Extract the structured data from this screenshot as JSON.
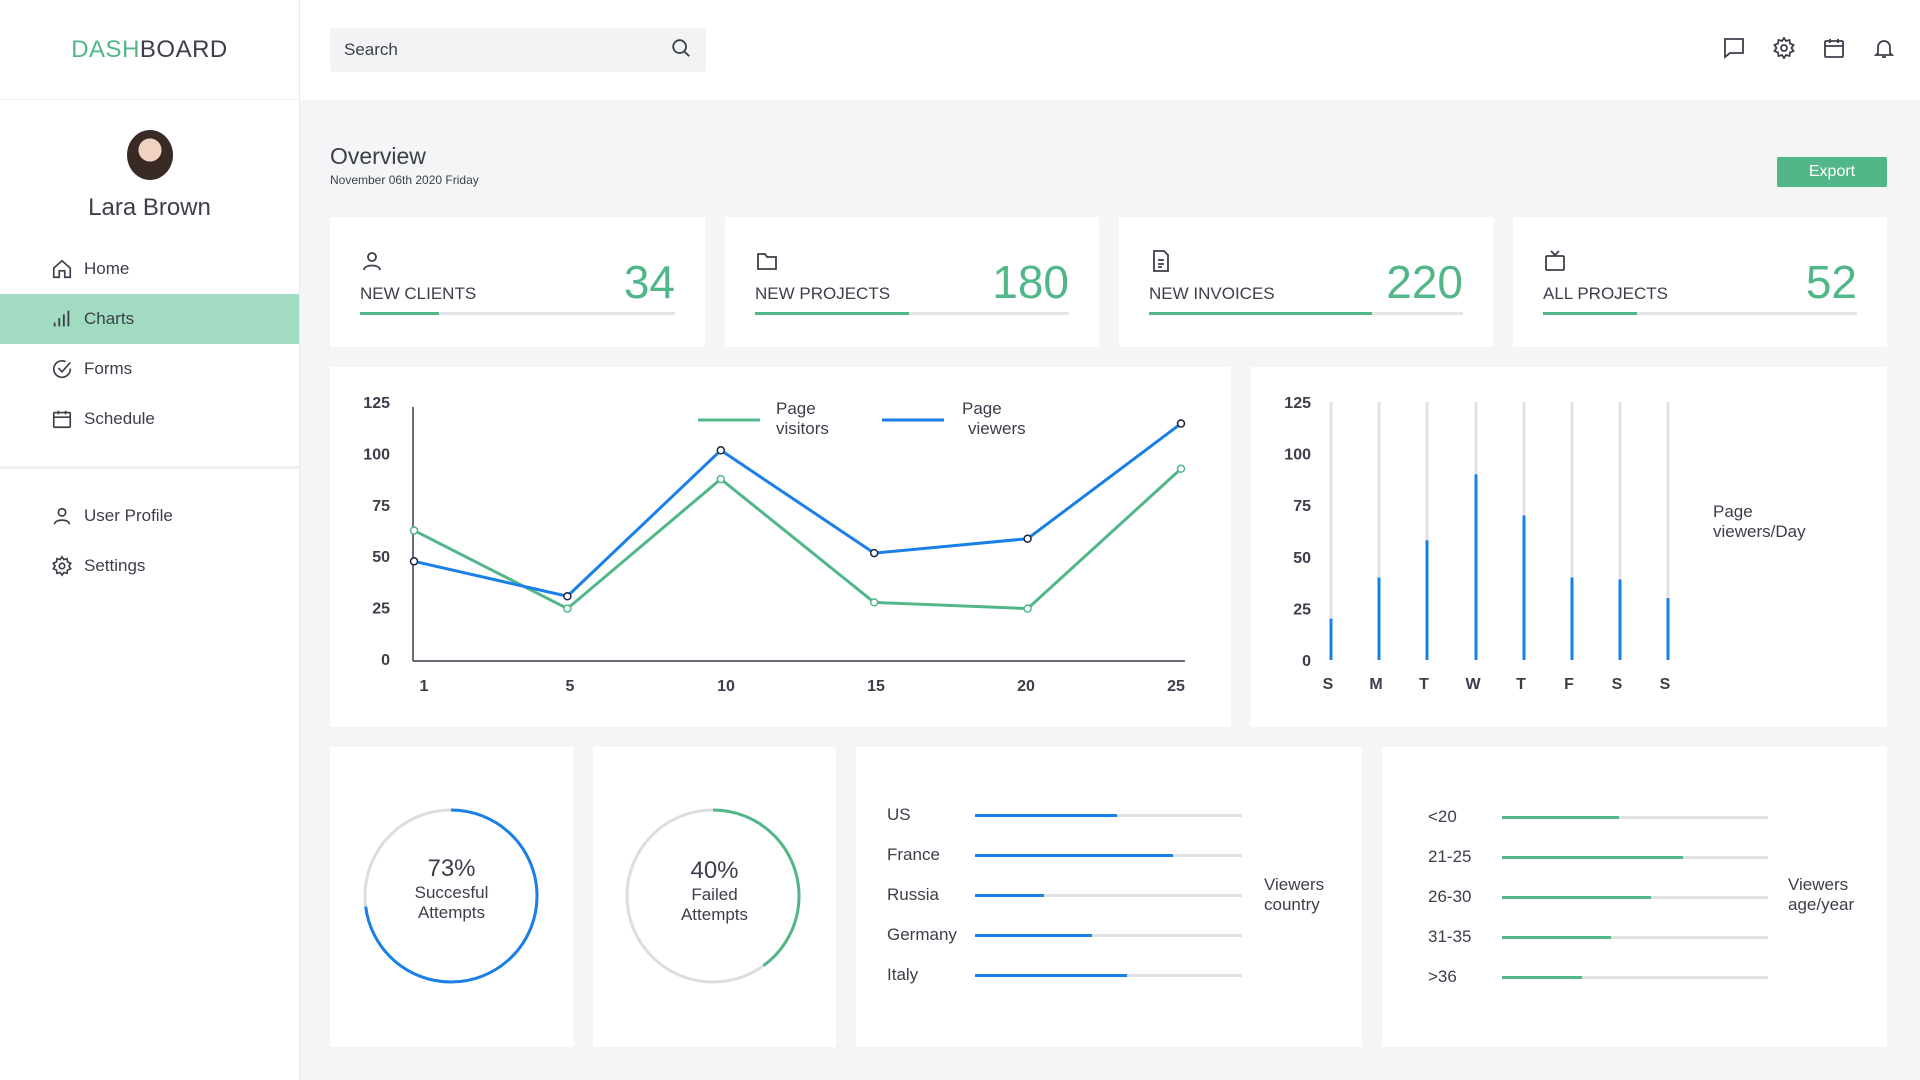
{
  "brand": {
    "part1": "DASH",
    "part2": "BOARD"
  },
  "user": {
    "name": "Lara Brown"
  },
  "nav": {
    "items": [
      {
        "label": "Home",
        "icon": "home-icon"
      },
      {
        "label": "Charts",
        "icon": "bar-chart-icon",
        "active": true
      },
      {
        "label": "Forms",
        "icon": "check-circle-icon"
      },
      {
        "label": "Schedule",
        "icon": "calendar-icon"
      }
    ],
    "secondary": [
      {
        "label": "User Profile",
        "icon": "user-icon"
      },
      {
        "label": "Settings",
        "icon": "gear-icon"
      }
    ]
  },
  "search": {
    "placeholder": "Search"
  },
  "topbar_icons": [
    "chat-icon",
    "gear-icon",
    "calendar-icon",
    "bell-icon"
  ],
  "overview": {
    "title": "Overview",
    "date": "November 06th 2020 Friday",
    "export_label": "Export"
  },
  "colors": {
    "accent": "#52b788",
    "blue": "#1a80e8",
    "track": "#e4e5e8",
    "active_nav": "#a1dbc1"
  },
  "stats": [
    {
      "label": "NEW CLIENTS",
      "value": "34",
      "icon": "user-icon",
      "progress": 0.25
    },
    {
      "label": "NEW PROJECTS",
      "value": "180",
      "icon": "folder-icon",
      "progress": 0.49
    },
    {
      "label": "NEW INVOICES",
      "value": "220",
      "icon": "document-icon",
      "progress": 0.71
    },
    {
      "label": "ALL PROJECTS",
      "value": "52",
      "icon": "tv-icon",
      "progress": 0.3
    }
  ],
  "chart_data": [
    {
      "type": "line",
      "x": [
        1,
        5,
        10,
        15,
        20,
        25
      ],
      "ylim": [
        0,
        125
      ],
      "yticks": [
        0,
        25,
        50,
        75,
        100,
        125
      ],
      "legend": "top-right",
      "series": [
        {
          "name": "Page visitors",
          "color": "#52b788",
          "points": [
            [
              1,
              63
            ],
            [
              6,
              25
            ],
            [
              11,
              88
            ],
            [
              16,
              28
            ],
            [
              21,
              25
            ],
            [
              26,
              93
            ]
          ]
        },
        {
          "name": "Page viewers",
          "color": "#1a80e8",
          "points": [
            [
              1,
              48
            ],
            [
              6,
              31
            ],
            [
              11,
              102
            ],
            [
              16,
              52
            ],
            [
              21,
              59
            ],
            [
              26,
              115
            ]
          ]
        }
      ]
    },
    {
      "type": "bar",
      "categories": [
        "S",
        "M",
        "T",
        "W",
        "T",
        "F",
        "S",
        "S"
      ],
      "values": [
        20,
        40,
        58,
        90,
        70,
        40,
        39,
        30
      ],
      "ylim": [
        0,
        125
      ],
      "yticks": [
        0,
        25,
        50,
        75,
        100,
        125
      ],
      "label": "Page viewers/Day"
    },
    {
      "type": "pie",
      "value": 73,
      "label_pct": "73%",
      "label_line1": "Succesful",
      "label_line2": "Attempts",
      "color": "#1a80e8"
    },
    {
      "type": "pie",
      "value": 40,
      "label_pct": "40%",
      "label_line1": "Failed",
      "label_line2": "Attempts",
      "color": "#52b788"
    },
    {
      "type": "bar",
      "orientation": "horizontal",
      "categories": [
        "US",
        "France",
        "Russia",
        "Germany",
        "Italy"
      ],
      "values": [
        0.53,
        0.74,
        0.26,
        0.44,
        0.57
      ],
      "label_line1": "Viewers",
      "label_line2": "country",
      "color": "#1a80e8"
    },
    {
      "type": "bar",
      "orientation": "horizontal",
      "categories": [
        "<20",
        "21-25",
        "26-30",
        "31-35",
        ">36"
      ],
      "values": [
        0.44,
        0.68,
        0.56,
        0.41,
        0.3
      ],
      "label_line1": "Viewers",
      "label_line2": "age/year",
      "color": "#52b788"
    }
  ]
}
